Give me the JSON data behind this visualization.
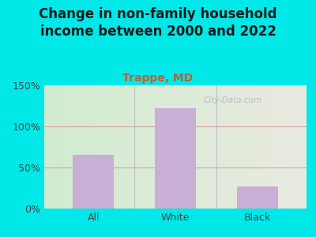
{
  "title": "Change in non-family household\nincome between 2000 and 2022",
  "subtitle": "Trappe, MD",
  "categories": [
    "All",
    "White",
    "Black"
  ],
  "values": [
    65,
    122,
    27
  ],
  "bar_color": "#c9aed6",
  "title_color": "#1a1a1a",
  "subtitle_color": "#c06030",
  "background_outer": "#00e8e8",
  "bg_left_color": "#d0ecd0",
  "bg_right_color": "#eaeae0",
  "ylim": [
    0,
    150
  ],
  "yticks": [
    0,
    50,
    100,
    150
  ],
  "ytick_labels": [
    "0%",
    "50%",
    "100%",
    "150%"
  ],
  "grid_color": "#e0a0a8",
  "watermark": "City-Data.com",
  "title_fontsize": 12,
  "subtitle_fontsize": 10,
  "tick_fontsize": 9,
  "bar_width": 0.5
}
